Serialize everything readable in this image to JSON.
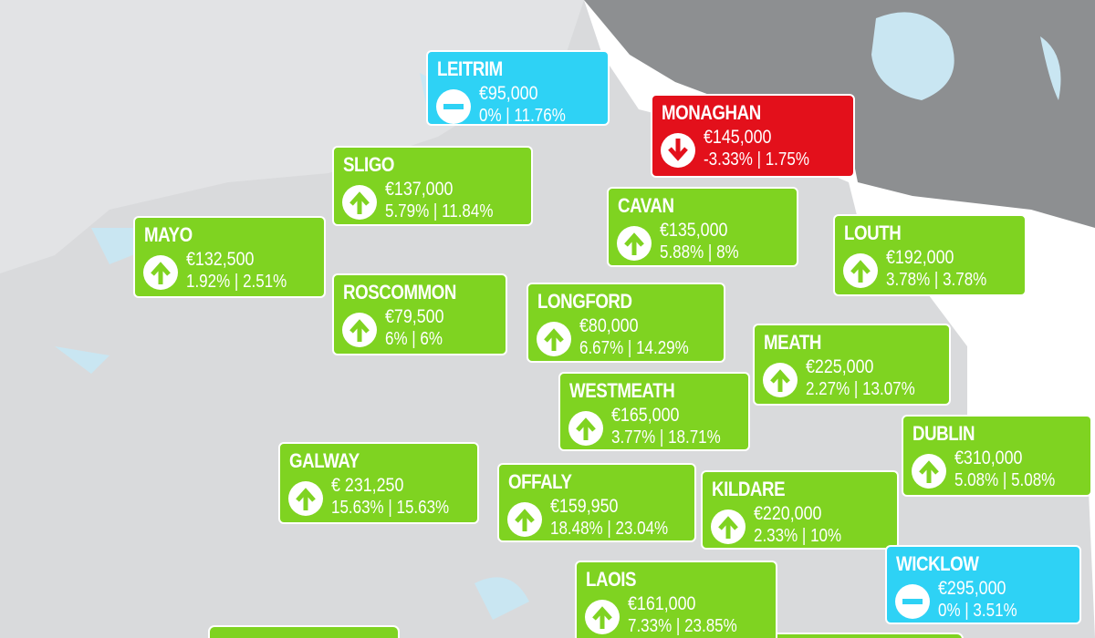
{
  "counties": [
    {
      "name": "LEITRIM",
      "price": "€95,000",
      "change": "0% | 11.76%",
      "trend": "flat"
    },
    {
      "name": "MONAGHAN",
      "price": "€145,000",
      "change": "-3.33% | 1.75%",
      "trend": "down"
    },
    {
      "name": "SLIGO",
      "price": "€137,000",
      "change": "5.79% | 11.84%",
      "trend": "up"
    },
    {
      "name": "CAVAN",
      "price": "€135,000",
      "change": "5.88% | 8%",
      "trend": "up"
    },
    {
      "name": "MAYO",
      "price": "€132,500",
      "change": "1.92% | 2.51%",
      "trend": "up"
    },
    {
      "name": "LOUTH",
      "price": "€192,000",
      "change": "3.78% | 3.78%",
      "trend": "up"
    },
    {
      "name": "ROSCOMMON",
      "price": "€79,500",
      "change": "6% | 6%",
      "trend": "up"
    },
    {
      "name": "LONGFORD",
      "price": "€80,000",
      "change": "6.67% | 14.29%",
      "trend": "up"
    },
    {
      "name": "MEATH",
      "price": "€225,000",
      "change": "2.27% | 13.07%",
      "trend": "up"
    },
    {
      "name": "WESTMEATH",
      "price": "€165,000",
      "change": "3.77% | 18.71%",
      "trend": "up"
    },
    {
      "name": "DUBLIN",
      "price": "€310,000",
      "change": "5.08% | 5.08%",
      "trend": "up"
    },
    {
      "name": "GALWAY",
      "price": "€ 231,250",
      "change": "15.63% | 15.63%",
      "trend": "up"
    },
    {
      "name": "OFFALY",
      "price": "€159,950",
      "change": "18.48% | 23.04%",
      "trend": "up"
    },
    {
      "name": "KILDARE",
      "price": "€220,000",
      "change": "2.33% | 10%",
      "trend": "up"
    },
    {
      "name": "WICKLOW",
      "price": "€295,000",
      "change": "0% | 3.51%",
      "trend": "flat"
    },
    {
      "name": "LAOIS",
      "price": "€161,000",
      "change": "7.33% | 23.85%",
      "trend": "up"
    }
  ]
}
